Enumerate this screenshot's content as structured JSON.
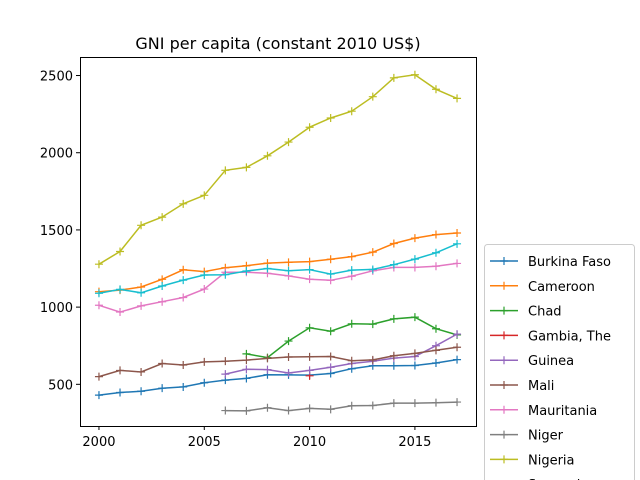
{
  "chart_data": {
    "type": "line",
    "title": "GNI per capita (constant 2010 US$)",
    "xlabel": "",
    "ylabel": "",
    "xlim": [
      1999.1,
      2017.9
    ],
    "ylim": [
      230,
      2620
    ],
    "x_ticks": [
      2000,
      2005,
      2010,
      2015
    ],
    "y_ticks": [
      500,
      1000,
      1500,
      2000,
      2500
    ],
    "grid": false,
    "legend_position": "bottom-right outside",
    "series": [
      {
        "name": "Burkina Faso",
        "color": "#1f77b4",
        "points": [
          [
            2000,
            430
          ],
          [
            2001,
            447
          ],
          [
            2002,
            455
          ],
          [
            2003,
            475
          ],
          [
            2004,
            483
          ],
          [
            2005,
            510
          ],
          [
            2006,
            527
          ],
          [
            2007,
            538
          ],
          [
            2008,
            562
          ],
          [
            2009,
            561
          ],
          [
            2010,
            560
          ],
          [
            2011,
            570
          ],
          [
            2012,
            601
          ],
          [
            2013,
            620
          ],
          [
            2014,
            620
          ],
          [
            2015,
            622
          ],
          [
            2016,
            638
          ],
          [
            2017,
            660
          ]
        ]
      },
      {
        "name": "Cameroon",
        "color": "#ff7f0e",
        "points": [
          [
            2000,
            1100
          ],
          [
            2001,
            1110
          ],
          [
            2002,
            1130
          ],
          [
            2003,
            1180
          ],
          [
            2004,
            1242
          ],
          [
            2005,
            1230
          ],
          [
            2006,
            1255
          ],
          [
            2007,
            1268
          ],
          [
            2008,
            1285
          ],
          [
            2009,
            1290
          ],
          [
            2010,
            1295
          ],
          [
            2011,
            1310
          ],
          [
            2012,
            1327
          ],
          [
            2013,
            1356
          ],
          [
            2014,
            1412
          ],
          [
            2015,
            1447
          ],
          [
            2016,
            1470
          ],
          [
            2017,
            1480
          ]
        ]
      },
      {
        "name": "Chad",
        "color": "#2ca02c",
        "points": [
          [
            2007,
            697
          ],
          [
            2008,
            673
          ],
          [
            2009,
            780
          ],
          [
            2010,
            866
          ],
          [
            2011,
            844
          ],
          [
            2012,
            892
          ],
          [
            2013,
            890
          ],
          [
            2014,
            924
          ],
          [
            2015,
            935
          ],
          [
            2016,
            860
          ],
          [
            2017,
            820
          ]
        ]
      },
      {
        "name": "Gambia, The",
        "color": "#d62728",
        "points": [
          [
            2010,
            555
          ]
        ]
      },
      {
        "name": "Guinea",
        "color": "#9467bd",
        "points": [
          [
            2006,
            566
          ],
          [
            2007,
            597
          ],
          [
            2008,
            595
          ],
          [
            2009,
            573
          ],
          [
            2010,
            590
          ],
          [
            2011,
            610
          ],
          [
            2012,
            635
          ],
          [
            2013,
            650
          ],
          [
            2014,
            670
          ],
          [
            2015,
            680
          ],
          [
            2016,
            750
          ],
          [
            2017,
            825
          ]
        ]
      },
      {
        "name": "Mali",
        "color": "#8c564b",
        "points": [
          [
            2000,
            550
          ],
          [
            2001,
            590
          ],
          [
            2002,
            580
          ],
          [
            2003,
            635
          ],
          [
            2004,
            625
          ],
          [
            2005,
            645
          ],
          [
            2006,
            650
          ],
          [
            2007,
            657
          ],
          [
            2008,
            668
          ],
          [
            2009,
            677
          ],
          [
            2010,
            678
          ],
          [
            2011,
            680
          ],
          [
            2012,
            653
          ],
          [
            2013,
            658
          ],
          [
            2014,
            685
          ],
          [
            2015,
            700
          ],
          [
            2016,
            720
          ],
          [
            2017,
            740
          ]
        ]
      },
      {
        "name": "Mauritania",
        "color": "#e377c2",
        "points": [
          [
            2000,
            1012
          ],
          [
            2001,
            968
          ],
          [
            2002,
            1008
          ],
          [
            2003,
            1035
          ],
          [
            2004,
            1062
          ],
          [
            2005,
            1117
          ],
          [
            2006,
            1226
          ],
          [
            2007,
            1226
          ],
          [
            2008,
            1219
          ],
          [
            2009,
            1202
          ],
          [
            2010,
            1181
          ],
          [
            2011,
            1174
          ],
          [
            2012,
            1200
          ],
          [
            2013,
            1235
          ],
          [
            2014,
            1257
          ],
          [
            2015,
            1257
          ],
          [
            2016,
            1265
          ],
          [
            2017,
            1283
          ]
        ]
      },
      {
        "name": "Niger",
        "color": "#7f7f7f",
        "points": [
          [
            2006,
            330
          ],
          [
            2007,
            328
          ],
          [
            2008,
            348
          ],
          [
            2009,
            330
          ],
          [
            2010,
            344
          ],
          [
            2011,
            338
          ],
          [
            2012,
            361
          ],
          [
            2013,
            363
          ],
          [
            2014,
            378
          ],
          [
            2015,
            378
          ],
          [
            2016,
            381
          ],
          [
            2017,
            385
          ]
        ]
      },
      {
        "name": "Nigeria",
        "color": "#bcbd22",
        "points": [
          [
            2000,
            1278
          ],
          [
            2001,
            1360
          ],
          [
            2002,
            1530
          ],
          [
            2003,
            1583
          ],
          [
            2004,
            1669
          ],
          [
            2005,
            1724
          ],
          [
            2006,
            1886
          ],
          [
            2007,
            1905
          ],
          [
            2008,
            1980
          ],
          [
            2009,
            2069
          ],
          [
            2010,
            2165
          ],
          [
            2011,
            2225
          ],
          [
            2012,
            2269
          ],
          [
            2013,
            2363
          ],
          [
            2014,
            2485
          ],
          [
            2015,
            2505
          ],
          [
            2016,
            2411
          ],
          [
            2017,
            2352
          ]
        ]
      },
      {
        "name": "Senegal",
        "color": "#17becf",
        "points": [
          [
            2000,
            1090
          ],
          [
            2001,
            1115
          ],
          [
            2002,
            1093
          ],
          [
            2003,
            1137
          ],
          [
            2004,
            1175
          ],
          [
            2005,
            1208
          ],
          [
            2006,
            1210
          ],
          [
            2007,
            1234
          ],
          [
            2008,
            1250
          ],
          [
            2009,
            1236
          ],
          [
            2010,
            1243
          ],
          [
            2011,
            1214
          ],
          [
            2012,
            1240
          ],
          [
            2013,
            1244
          ],
          [
            2014,
            1275
          ],
          [
            2015,
            1311
          ],
          [
            2016,
            1352
          ],
          [
            2017,
            1410
          ]
        ]
      }
    ]
  }
}
